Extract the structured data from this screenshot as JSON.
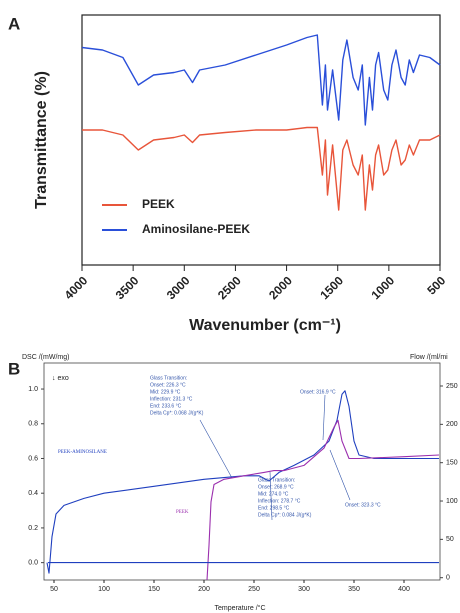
{
  "chart_data": [
    {
      "type": "line",
      "panel": "A",
      "xlabel": "Wavenumber (cm⁻¹)",
      "ylabel": "Transmittance (%)",
      "x": [
        4000,
        3800,
        3600,
        3450,
        3300,
        3100,
        3000,
        2920,
        2850,
        2600,
        2300,
        2000,
        1800,
        1700,
        1650,
        1620,
        1600,
        1550,
        1490,
        1450,
        1410,
        1350,
        1300,
        1260,
        1230,
        1190,
        1160,
        1130,
        1100,
        1050,
        1010,
        970,
        930,
        880,
        840,
        800,
        760,
        700,
        600,
        500
      ],
      "series": [
        {
          "name": "PEEK",
          "color": "#e8553a",
          "values": [
            54,
            54,
            52,
            46,
            50,
            51,
            52,
            49,
            52,
            53,
            54,
            54,
            55,
            55,
            36,
            50,
            28,
            48,
            22,
            46,
            50,
            40,
            36,
            44,
            22,
            40,
            30,
            44,
            48,
            36,
            38,
            46,
            50,
            40,
            42,
            48,
            44,
            50,
            50,
            52
          ]
        },
        {
          "name": "Aminosilane-PEEK",
          "color": "#2a4fd9",
          "values": [
            87,
            86,
            83,
            72,
            76,
            77,
            78,
            73,
            78,
            80,
            84,
            88,
            91,
            92,
            64,
            80,
            62,
            78,
            58,
            82,
            90,
            75,
            70,
            80,
            56,
            75,
            62,
            80,
            85,
            70,
            66,
            80,
            86,
            75,
            72,
            82,
            77,
            84,
            83,
            80
          ]
        }
      ],
      "xlim": [
        4000,
        500
      ],
      "xticks": [
        4000,
        3500,
        3000,
        2500,
        2000,
        1500,
        1000,
        500
      ],
      "ylim": [
        0,
        100
      ],
      "legend": "lower left"
    },
    {
      "type": "line",
      "panel": "B",
      "xlabel": "Temperature /°C",
      "ylabel": "DSC /(mW/mg)",
      "y2label": "Flow /(ml/mi",
      "direction": "↓ exo",
      "series": [
        {
          "name": "PEEK-AMINOSILANE",
          "color": "#1f3fbf",
          "x": [
            43,
            45,
            48,
            52,
            60,
            80,
            100,
            150,
            200,
            240,
            255,
            265,
            275,
            290,
            310,
            325,
            333,
            338,
            341,
            345,
            350,
            355,
            370,
            400,
            435
          ],
          "values": [
            0.0,
            -0.06,
            0.15,
            0.28,
            0.33,
            0.37,
            0.4,
            0.44,
            0.48,
            0.5,
            0.5,
            0.47,
            0.52,
            0.56,
            0.62,
            0.7,
            0.82,
            0.97,
            0.99,
            0.9,
            0.7,
            0.62,
            0.6,
            0.6,
            0.6
          ]
        },
        {
          "name": "PEEK",
          "color": "#9b2fae",
          "x": [
            203,
            205,
            207,
            210,
            220,
            240,
            260,
            270,
            280,
            300,
            320,
            330,
            334,
            338,
            345,
            355,
            400,
            435
          ],
          "values": [
            -0.1,
            0.1,
            0.35,
            0.45,
            0.48,
            0.5,
            0.52,
            0.53,
            0.53,
            0.56,
            0.66,
            0.78,
            0.82,
            0.7,
            0.6,
            0.6,
            0.61,
            0.62
          ]
        },
        {
          "color": "#1f3fbf",
          "x": [
            44,
            435
          ],
          "values": [
            0,
            0
          ]
        }
      ],
      "xlim": [
        40,
        436
      ],
      "xticks": [
        50,
        100,
        150,
        200,
        250,
        300,
        350,
        400
      ],
      "ylim": [
        -0.1,
        1.15
      ],
      "yticks": [
        {
          "value": 0,
          "label": "0.0"
        },
        0.2,
        0.4,
        0.6,
        0.8,
        {
          "value": 1,
          "label": "1.0"
        }
      ],
      "y2lim": [
        -3,
        280
      ],
      "y2ticks": [
        0,
        50,
        100,
        150,
        200,
        250
      ],
      "annotations": [
        [
          "Glass Transition:",
          "Onset:  226.3 °C",
          "Mid:  229.9 °C",
          "Inflection:  231.3 °C",
          "End:  233.6 °C",
          "Delta Cp*:  0.068 J/(g*K)"
        ],
        [
          "Glass Transition:",
          "Onset:  268.9 °C",
          "Mid:  274.0 °C",
          "Inflection:  278.7 °C",
          "End:  298.5 °C",
          "Delta Cp*:  0.084 J/(g*K)"
        ],
        [
          "Onset:  316.9 °C"
        ],
        [
          "Onset:  323.3 °C"
        ]
      ]
    }
  ]
}
